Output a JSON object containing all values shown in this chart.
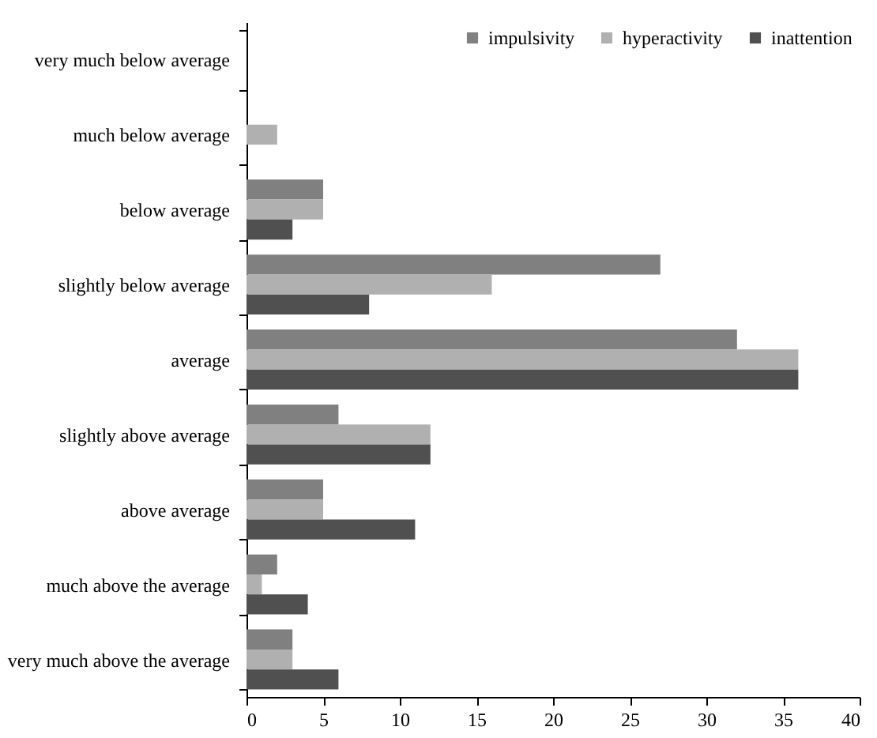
{
  "chart_data": {
    "type": "bar",
    "orientation": "horizontal",
    "categories": [
      "very much below average",
      "much below average",
      "below average",
      "slightly below average",
      "average",
      "slightly above average",
      "above average",
      "much above the average",
      "very much above the average"
    ],
    "series": [
      {
        "name": "impulsivity",
        "color": "#808080",
        "values": [
          0,
          0,
          5,
          27,
          32,
          6,
          5,
          2,
          3
        ]
      },
      {
        "name": "hyperactivity",
        "color": "#b0b0b0",
        "values": [
          0,
          2,
          5,
          16,
          36,
          12,
          5,
          1,
          3
        ]
      },
      {
        "name": "inattention",
        "color": "#505050",
        "values": [
          0,
          0,
          3,
          8,
          36,
          12,
          11,
          4,
          6
        ]
      }
    ],
    "xlim": [
      0,
      40
    ],
    "xticks": [
      0,
      5,
      10,
      15,
      20,
      25,
      30,
      35,
      40
    ],
    "grid": false,
    "legend": "top right"
  }
}
